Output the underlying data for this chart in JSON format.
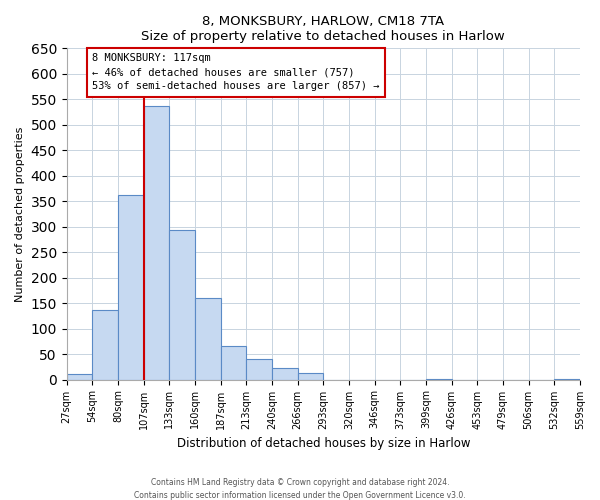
{
  "title": "8, MONKSBURY, HARLOW, CM18 7TA",
  "subtitle": "Size of property relative to detached houses in Harlow",
  "xlabel": "Distribution of detached houses by size in Harlow",
  "ylabel": "Number of detached properties",
  "bar_values": [
    10,
    137,
    363,
    537,
    293,
    160,
    65,
    40,
    22,
    13,
    0,
    0,
    0,
    0,
    2,
    0,
    0,
    0,
    0,
    2
  ],
  "bin_labels": [
    "27sqm",
    "54sqm",
    "80sqm",
    "107sqm",
    "133sqm",
    "160sqm",
    "187sqm",
    "213sqm",
    "240sqm",
    "266sqm",
    "293sqm",
    "320sqm",
    "346sqm",
    "373sqm",
    "399sqm",
    "426sqm",
    "453sqm",
    "479sqm",
    "506sqm",
    "532sqm",
    "559sqm"
  ],
  "bar_color": "#c6d9f1",
  "bar_edge_color": "#5a8ac6",
  "vline_x": 3.0,
  "vline_color": "#cc0000",
  "ylim": [
    0,
    650
  ],
  "yticks": [
    0,
    50,
    100,
    150,
    200,
    250,
    300,
    350,
    400,
    450,
    500,
    550,
    600,
    650
  ],
  "annotation_title": "8 MONKSBURY: 117sqm",
  "annotation_line1": "← 46% of detached houses are smaller (757)",
  "annotation_line2": "53% of semi-detached houses are larger (857) →",
  "footer_line1": "Contains HM Land Registry data © Crown copyright and database right 2024.",
  "footer_line2": "Contains public sector information licensed under the Open Government Licence v3.0.",
  "bg_color": "#ffffff",
  "plot_bg_color": "#ffffff",
  "grid_color": "#c8d4e0"
}
